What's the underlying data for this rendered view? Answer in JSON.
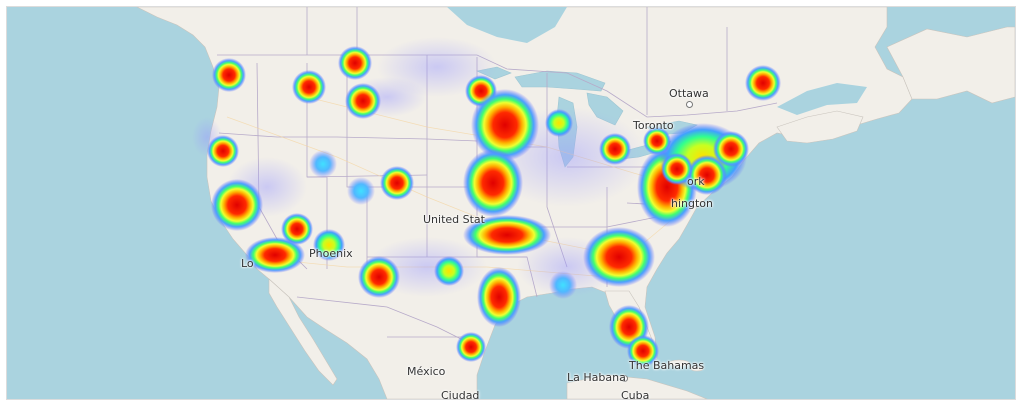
{
  "map": {
    "labels": {
      "ottawa": "Ottawa",
      "toronto": "Toronto",
      "united_states": "United Stat",
      "phoenix": "Phoenix",
      "los_angeles": "Lo",
      "new_york": "ork",
      "washington": "hington",
      "mexico": "México",
      "ciudad": "Ciudad",
      "la_habana": "La Habana",
      "bahamas": "The Bahamas",
      "cuba": "Cuba"
    },
    "colors": {
      "water": "#aad3df",
      "land": "#f2efe9",
      "border": "#b4a7c7",
      "heat_low": "#6a7bff",
      "heat_mid": "#4dff4d",
      "heat_high": "#ff0000"
    },
    "heatmap_style": "blue-green-yellow-red"
  }
}
